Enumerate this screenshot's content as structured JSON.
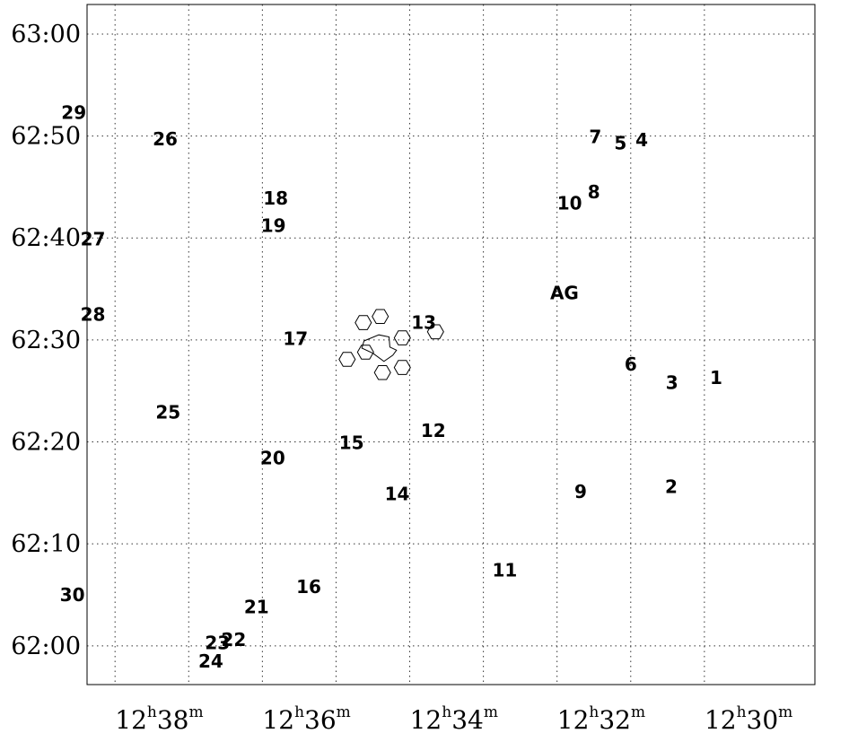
{
  "chart_data": {
    "type": "scatter",
    "title": "",
    "xlabel": "",
    "ylabel": "",
    "x_ticks": [
      {
        "value": 38,
        "hours": "12",
        "minutes": "38",
        "h": "h",
        "m": "m"
      },
      {
        "value": 36,
        "hours": "12",
        "minutes": "36",
        "h": "h",
        "m": "m"
      },
      {
        "value": 34,
        "hours": "12",
        "minutes": "34",
        "h": "h",
        "m": "m"
      },
      {
        "value": 32,
        "hours": "12",
        "minutes": "32",
        "h": "h",
        "m": "m"
      },
      {
        "value": 30,
        "hours": "12",
        "minutes": "30",
        "h": "h",
        "m": "m"
      }
    ],
    "x_grid": [
      38.6,
      37.6,
      36.6,
      35.6,
      34.6,
      33.6,
      32.6,
      31.6,
      30.6
    ],
    "y_ticks": [
      {
        "value": 0,
        "label": "62:00"
      },
      {
        "value": 10,
        "label": "62:10"
      },
      {
        "value": 20,
        "label": "62:20"
      },
      {
        "value": 30,
        "label": "62:30"
      },
      {
        "value": 40,
        "label": "62:40"
      },
      {
        "value": 50,
        "label": "62:50"
      },
      {
        "value": 60,
        "label": "63:00"
      }
    ],
    "xlim_ra_minutes": [
      38.98,
      29.1
    ],
    "ylim_dec_arcmin_above_62deg": [
      -3.8,
      62.9
    ],
    "grid": true,
    "points": [
      {
        "label": "1",
        "ra_min": 30.44,
        "dec_arcmin": 26.3
      },
      {
        "label": "2",
        "ra_min": 31.05,
        "dec_arcmin": 15.6
      },
      {
        "label": "3",
        "ra_min": 31.04,
        "dec_arcmin": 25.8
      },
      {
        "label": "4",
        "ra_min": 31.45,
        "dec_arcmin": 49.6
      },
      {
        "label": "5",
        "ra_min": 31.74,
        "dec_arcmin": 49.3
      },
      {
        "label": "6",
        "ra_min": 31.6,
        "dec_arcmin": 27.6
      },
      {
        "label": "7",
        "ra_min": 32.08,
        "dec_arcmin": 49.9
      },
      {
        "label": "8",
        "ra_min": 32.1,
        "dec_arcmin": 44.5
      },
      {
        "label": "9",
        "ra_min": 32.28,
        "dec_arcmin": 15.1
      },
      {
        "label": "10",
        "ra_min": 32.43,
        "dec_arcmin": 43.4
      },
      {
        "label": "11",
        "ra_min": 33.31,
        "dec_arcmin": 7.4
      },
      {
        "label": "12",
        "ra_min": 34.28,
        "dec_arcmin": 21.1
      },
      {
        "label": "13",
        "ra_min": 34.41,
        "dec_arcmin": 31.7
      },
      {
        "label": "14",
        "ra_min": 34.77,
        "dec_arcmin": 14.9
      },
      {
        "label": "15",
        "ra_min": 35.39,
        "dec_arcmin": 19.9
      },
      {
        "label": "16",
        "ra_min": 35.97,
        "dec_arcmin": 5.8
      },
      {
        "label": "17",
        "ra_min": 36.15,
        "dec_arcmin": 30.1
      },
      {
        "label": "18",
        "ra_min": 36.42,
        "dec_arcmin": 43.9
      },
      {
        "label": "19",
        "ra_min": 36.45,
        "dec_arcmin": 41.2
      },
      {
        "label": "20",
        "ra_min": 36.46,
        "dec_arcmin": 18.4
      },
      {
        "label": "21",
        "ra_min": 36.68,
        "dec_arcmin": 3.8
      },
      {
        "label": "22",
        "ra_min": 36.99,
        "dec_arcmin": 0.6
      },
      {
        "label": "23",
        "ra_min": 37.21,
        "dec_arcmin": 0.3
      },
      {
        "label": "24",
        "ra_min": 37.3,
        "dec_arcmin": -1.5
      },
      {
        "label": "25",
        "ra_min": 37.88,
        "dec_arcmin": 22.9
      },
      {
        "label": "26",
        "ra_min": 37.92,
        "dec_arcmin": 49.7
      },
      {
        "label": "27",
        "ra_min": 38.9,
        "dec_arcmin": 39.9
      },
      {
        "label": "28",
        "ra_min": 38.9,
        "dec_arcmin": 32.5
      },
      {
        "label": "29",
        "ra_min": 39.16,
        "dec_arcmin": 52.3
      },
      {
        "label": "30",
        "ra_min": 39.18,
        "dec_arcmin": 5.0
      },
      {
        "label": "AG",
        "ra_min": 32.5,
        "dec_arcmin": 34.6
      }
    ],
    "hexagons": [
      {
        "ra_min": 35.23,
        "dec_arcmin": 31.7
      },
      {
        "ra_min": 35.0,
        "dec_arcmin": 32.3
      },
      {
        "ra_min": 34.7,
        "dec_arcmin": 30.2
      },
      {
        "ra_min": 34.25,
        "dec_arcmin": 30.8
      },
      {
        "ra_min": 35.45,
        "dec_arcmin": 28.1
      },
      {
        "ra_min": 35.2,
        "dec_arcmin": 28.8
      },
      {
        "ra_min": 34.97,
        "dec_arcmin": 26.8
      },
      {
        "ra_min": 34.7,
        "dec_arcmin": 27.3
      }
    ],
    "fov_outline": [
      [
        35.22,
        29.9
      ],
      [
        35.02,
        30.5
      ],
      [
        34.88,
        30.3
      ],
      [
        34.87,
        29.3
      ],
      [
        34.78,
        29.0
      ],
      [
        34.83,
        28.5
      ],
      [
        34.95,
        27.9
      ],
      [
        35.1,
        28.7
      ],
      [
        35.25,
        29.2
      ]
    ]
  }
}
